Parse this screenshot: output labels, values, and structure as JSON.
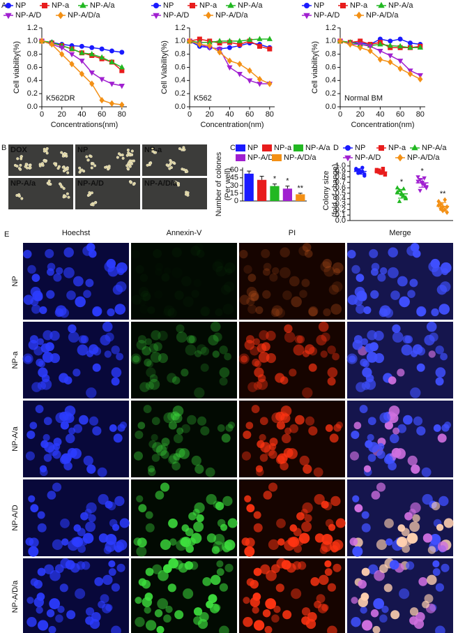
{
  "panel_labels": [
    "A",
    "B",
    "C",
    "D",
    "E"
  ],
  "chart_data": [
    {
      "type": "line",
      "annotation": "K562DR",
      "xlabel": "Concentrations(nm)",
      "ylabel": "Cell viability(%)",
      "x": [
        0,
        10,
        20,
        30,
        40,
        50,
        60,
        70,
        80
      ],
      "xlim": [
        0,
        85
      ],
      "xticks": [
        0,
        20,
        40,
        60,
        80
      ],
      "ylim": [
        0,
        1.2
      ],
      "yticks": [
        {
          "value": 0,
          "label": "0.0"
        },
        0.2,
        0.4,
        0.6,
        0.8,
        {
          "value": 1,
          "label": "1.0"
        },
        1.2
      ],
      "series": [
        {
          "name": "NP",
          "color": "#1a1aff",
          "marker": "circle",
          "values": [
            1.0,
            0.98,
            0.95,
            0.93,
            0.92,
            0.9,
            0.88,
            0.85,
            0.83
          ]
        },
        {
          "name": "NP-a",
          "color": "#e81c1c",
          "marker": "square",
          "values": [
            1.0,
            0.97,
            0.93,
            0.88,
            0.82,
            0.78,
            0.73,
            0.68,
            0.55
          ]
        },
        {
          "name": "NP-A/a",
          "color": "#22b822",
          "marker": "triangle",
          "values": [
            1.0,
            0.98,
            0.93,
            0.88,
            0.82,
            0.8,
            0.75,
            0.68,
            0.6
          ]
        },
        {
          "name": "NP-A/D",
          "color": "#a020d0",
          "marker": "triangle-down",
          "values": [
            1.0,
            0.95,
            0.9,
            0.8,
            0.7,
            0.52,
            0.42,
            0.35,
            0.32
          ]
        },
        {
          "name": "NP-A/D/a",
          "color": "#f39015",
          "marker": "diamond",
          "values": [
            1.0,
            0.95,
            0.8,
            0.65,
            0.5,
            0.35,
            0.1,
            0.05,
            0.03
          ]
        }
      ]
    },
    {
      "type": "line",
      "annotation": "K562",
      "xlabel": "Concentration(nm)",
      "ylabel": "Cell Viability(%)",
      "x": [
        0,
        10,
        20,
        30,
        40,
        50,
        60,
        70,
        80
      ],
      "xlim": [
        0,
        85
      ],
      "xticks": [
        0,
        20,
        40,
        60,
        80
      ],
      "ylim": [
        0,
        1.2
      ],
      "yticks": [
        {
          "value": 0,
          "label": "0.0"
        },
        0.2,
        0.4,
        0.6,
        0.8,
        {
          "value": 1,
          "label": "1.0"
        },
        1.2
      ],
      "series": [
        {
          "name": "NP",
          "color": "#1a1aff",
          "marker": "circle",
          "values": [
            1.0,
            0.92,
            0.9,
            0.88,
            0.9,
            0.93,
            0.97,
            0.95,
            0.9
          ]
        },
        {
          "name": "NP-a",
          "color": "#e81c1c",
          "marker": "square",
          "values": [
            1.0,
            1.03,
            1.0,
            0.97,
            0.98,
            0.95,
            1.0,
            0.92,
            0.88
          ]
        },
        {
          "name": "NP-A/a",
          "color": "#22b822",
          "marker": "triangle",
          "values": [
            1.0,
            0.98,
            0.98,
            1.0,
            1.0,
            1.0,
            1.02,
            1.03,
            1.03
          ]
        },
        {
          "name": "NP-A/D",
          "color": "#a020d0",
          "marker": "triangle-down",
          "values": [
            1.0,
            0.95,
            0.9,
            0.88,
            0.6,
            0.5,
            0.4,
            0.35,
            0.35
          ]
        },
        {
          "name": "NP-A/D/a",
          "color": "#f39015",
          "marker": "diamond",
          "values": [
            1.0,
            0.95,
            0.93,
            0.83,
            0.7,
            0.65,
            0.55,
            0.42,
            0.35
          ]
        }
      ]
    },
    {
      "type": "line",
      "annotation": "Normal BM",
      "xlabel": "Concentration(nm)",
      "ylabel": "Cell viability(%)",
      "x": [
        0,
        10,
        20,
        30,
        40,
        50,
        60,
        70,
        80
      ],
      "xlim": [
        0,
        85
      ],
      "xticks": [
        0,
        20,
        40,
        60,
        80
      ],
      "ylim": [
        0,
        1.2
      ],
      "yticks": [
        {
          "value": 0,
          "label": "0.0"
        },
        0.2,
        0.4,
        0.6,
        0.8,
        {
          "value": 1,
          "label": "1.0"
        },
        1.2
      ],
      "series": [
        {
          "name": "NP",
          "color": "#1a1aff",
          "marker": "circle",
          "values": [
            1.0,
            0.98,
            0.97,
            0.95,
            1.03,
            1.0,
            1.03,
            0.97,
            0.95
          ]
        },
        {
          "name": "NP-a",
          "color": "#e81c1c",
          "marker": "square",
          "values": [
            1.0,
            0.98,
            1.0,
            0.95,
            0.98,
            0.9,
            0.9,
            0.9,
            0.92
          ]
        },
        {
          "name": "NP-A/a",
          "color": "#22b822",
          "marker": "triangle",
          "values": [
            1.0,
            0.98,
            0.95,
            0.93,
            0.95,
            0.93,
            0.92,
            0.9,
            0.9
          ]
        },
        {
          "name": "NP-A/D",
          "color": "#a020d0",
          "marker": "triangle-down",
          "values": [
            1.0,
            0.95,
            0.95,
            0.92,
            0.85,
            0.78,
            0.7,
            0.55,
            0.48
          ]
        },
        {
          "name": "NP-A/D/a",
          "color": "#f39015",
          "marker": "diamond",
          "values": [
            1.0,
            0.95,
            0.9,
            0.85,
            0.72,
            0.68,
            0.58,
            0.5,
            0.42
          ]
        }
      ]
    },
    {
      "type": "bar",
      "ylabel": [
        "Number of colones",
        "(Per well)"
      ],
      "categories": [
        "NP",
        "NP-a",
        "NP-A/a",
        "NP-A/D",
        "NP-A/D/a"
      ],
      "colors": [
        "#1a1aff",
        "#e81c1c",
        "#22b822",
        "#a020d0",
        "#f39015"
      ],
      "values": [
        53,
        41,
        29,
        24,
        13
      ],
      "errors": [
        5,
        7,
        4,
        5,
        2
      ],
      "significance": [
        null,
        null,
        "*",
        "*",
        "**"
      ],
      "ylim": [
        0,
        65
      ],
      "yticks": [
        0,
        15,
        30,
        45,
        60
      ]
    },
    {
      "type": "scatter",
      "ylabel": [
        "Colony size",
        "(fold of change)"
      ],
      "ylim": [
        0,
        1.1
      ],
      "yticks": [
        {
          "value": 0,
          "label": "0.0"
        },
        0.1,
        0.2,
        0.3,
        0.4,
        0.5,
        0.6,
        0.7,
        0.8,
        0.9,
        {
          "value": 1,
          "label": "1.0"
        }
      ],
      "significance": [
        null,
        null,
        "*",
        "*",
        "**"
      ],
      "series": [
        {
          "name": "NP",
          "color": "#1a1aff",
          "marker": "circle",
          "values": [
            0.95,
            0.92,
            0.88,
            0.9,
            0.85,
            0.93,
            0.87,
            0.9,
            0.97,
            0.82
          ],
          "mean": 0.9,
          "sd": 0.05
        },
        {
          "name": "NP-a",
          "color": "#e81c1c",
          "marker": "square",
          "values": [
            0.93,
            0.9,
            0.88,
            0.95,
            0.86,
            0.9,
            0.92,
            0.87,
            0.89,
            0.84
          ],
          "mean": 0.89,
          "sd": 0.03
        },
        {
          "name": "NP-A/a",
          "color": "#22b822",
          "marker": "triangle",
          "values": [
            0.6,
            0.55,
            0.5,
            0.45,
            0.4,
            0.52,
            0.35,
            0.48,
            0.58,
            0.42
          ],
          "mean": 0.49,
          "sd": 0.08
        },
        {
          "name": "NP-A/D",
          "color": "#a020d0",
          "marker": "triangle-down",
          "values": [
            0.8,
            0.75,
            0.7,
            0.65,
            0.6,
            0.72,
            0.55,
            0.68,
            0.78,
            0.62
          ],
          "mean": 0.69,
          "sd": 0.08
        },
        {
          "name": "NP-A/D/a",
          "color": "#f39015",
          "marker": "diamond",
          "values": [
            0.35,
            0.3,
            0.25,
            0.2,
            0.15,
            0.28,
            0.22,
            0.18,
            0.38,
            0.25
          ],
          "mean": 0.26,
          "sd": 0.07
        }
      ]
    }
  ],
  "micrographs_b": [
    "DOX",
    "NP",
    "NP-a",
    "NP-A/a",
    "NP-A/D",
    "NP-A/D/a"
  ],
  "panel_e": {
    "columns": [
      "Hoechst",
      "Annexin-V",
      "PI",
      "Merge"
    ],
    "rows": [
      "NP",
      "NP-a",
      "NP-A/a",
      "NP-A/D",
      "NP-A/D/a"
    ]
  }
}
